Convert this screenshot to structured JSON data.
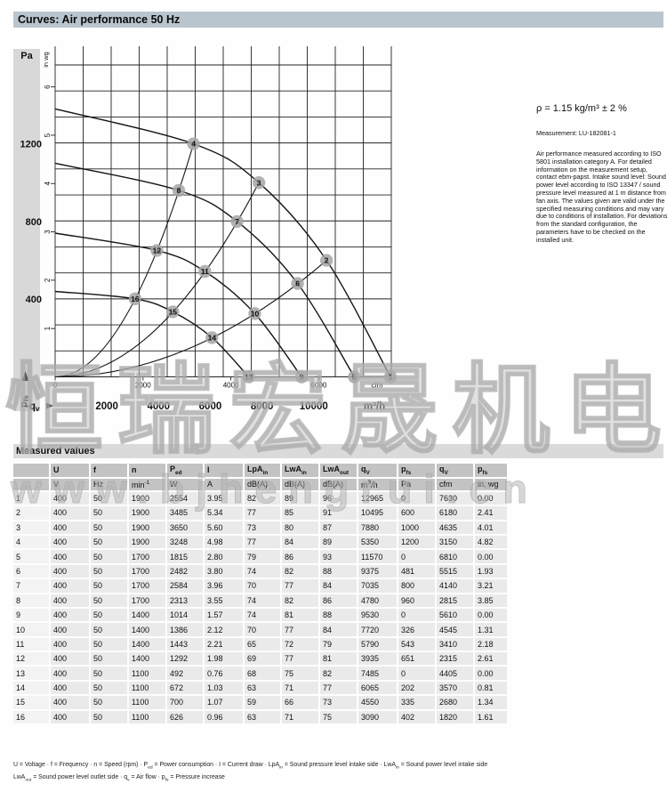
{
  "header": {
    "title": "Curves: Air performance 50 Hz"
  },
  "colors": {
    "title_bar": "#b9c5ce",
    "section_bar": "#dadada",
    "header_cell": "#c3c3c3",
    "body_cell": "#eaeaea",
    "rownum_cell": "#f3f3f3",
    "axis_band": "#d8d8d8",
    "point_marker": "#a6a6a6",
    "curve": "#141414",
    "grid": "#222222"
  },
  "side_notes": {
    "density": "ρ = 1.15 kg/m³ ± 2 %",
    "measurement": "Measurement: LU-182081-1",
    "note": "Air performance measured according to ISO 5801 installation category A. For detailed information on the measurement setup, contact ebm-papst. Intake sound level: Sound power level according to ISO 13347 / sound pressure level measured at 1 m distance from fan axis. The values given are valid under the specified measuring conditions and may vary due to conditions of installation. For deviations from the standard configuration, the parameters have to be checked on the installed unit."
  },
  "watermark": {
    "cjk": "恒瑞宏晟机电",
    "url": "www.bjhengrui.cn"
  },
  "chart_data": {
    "type": "line",
    "title": "Curves: Air performance 50 Hz",
    "x_axis": {
      "name": "q",
      "name_sub": "v",
      "outer_unit": "m³/h",
      "outer_ticks": [
        2000,
        4000,
        6000,
        8000,
        10000
      ],
      "inner_unit": "cfm",
      "inner_ticks": [
        0,
        2000,
        4000,
        6000
      ],
      "range_m3h": [
        0,
        13000
      ]
    },
    "y_axis": {
      "name": "p",
      "name_sub": "fs",
      "outer_unit": "Pa",
      "outer_ticks": [
        400,
        800,
        1200
      ],
      "inner_unit": "in wg",
      "inner_ticks": [
        1,
        2,
        3,
        4,
        5,
        6
      ],
      "range_pa": [
        0,
        1606
      ]
    },
    "grid": {
      "cols": 12,
      "rows": 12,
      "on": true
    },
    "speed_curves": [
      {
        "rpm": 1900,
        "zero_flow_pa": 1380,
        "points": [
          {
            "id": 4,
            "q_m3h": 5350,
            "p_pa": 1200
          },
          {
            "id": 3,
            "q_m3h": 7880,
            "p_pa": 1000
          },
          {
            "id": 2,
            "q_m3h": 10495,
            "p_pa": 600
          },
          {
            "id": 1,
            "q_m3h": 12965,
            "p_pa": 0
          }
        ]
      },
      {
        "rpm": 1700,
        "zero_flow_pa": 1100,
        "points": [
          {
            "id": 8,
            "q_m3h": 4780,
            "p_pa": 960
          },
          {
            "id": 7,
            "q_m3h": 7035,
            "p_pa": 800
          },
          {
            "id": 6,
            "q_m3h": 9375,
            "p_pa": 481
          },
          {
            "id": 5,
            "q_m3h": 11570,
            "p_pa": 0
          }
        ]
      },
      {
        "rpm": 1400,
        "zero_flow_pa": 740,
        "points": [
          {
            "id": 12,
            "q_m3h": 3935,
            "p_pa": 651
          },
          {
            "id": 11,
            "q_m3h": 5790,
            "p_pa": 543
          },
          {
            "id": 10,
            "q_m3h": 7720,
            "p_pa": 326
          },
          {
            "id": 9,
            "q_m3h": 9530,
            "p_pa": 0
          }
        ]
      },
      {
        "rpm": 1100,
        "zero_flow_pa": 440,
        "points": [
          {
            "id": 16,
            "q_m3h": 3090,
            "p_pa": 402
          },
          {
            "id": 15,
            "q_m3h": 4550,
            "p_pa": 335
          },
          {
            "id": 14,
            "q_m3h": 6065,
            "p_pa": 202
          },
          {
            "id": 13,
            "q_m3h": 7485,
            "p_pa": 0
          }
        ]
      }
    ],
    "system_curves": [
      {
        "through_ids": [
          16,
          12,
          8,
          4
        ],
        "end": {
          "q_m3h": 5350,
          "p_pa": 1200
        }
      },
      {
        "through_ids": [
          15,
          11,
          7,
          3
        ],
        "end": {
          "q_m3h": 7880,
          "p_pa": 1000
        }
      },
      {
        "through_ids": [
          14,
          10,
          6,
          2
        ],
        "end": {
          "q_m3h": 10495,
          "p_pa": 600
        }
      }
    ]
  },
  "table": {
    "title": "Measured values",
    "columns": [
      [],
      [
        {
          "t": "U"
        }
      ],
      [
        {
          "t": "f"
        }
      ],
      [
        {
          "t": "n"
        }
      ],
      [
        {
          "t": "P"
        },
        {
          "sub": "ed"
        }
      ],
      [
        {
          "t": "I"
        }
      ],
      [
        {
          "t": "LpA"
        },
        {
          "sub": "in"
        }
      ],
      [
        {
          "t": "LwA"
        },
        {
          "sub": "in"
        }
      ],
      [
        {
          "t": "LwA"
        },
        {
          "sub": "out"
        }
      ],
      [
        {
          "t": "q"
        },
        {
          "sub": "V"
        }
      ],
      [
        {
          "t": "p"
        },
        {
          "sub": "fs"
        }
      ],
      [
        {
          "t": "q"
        },
        {
          "sub": "V"
        }
      ],
      [
        {
          "t": "p"
        },
        {
          "sub": "fs"
        }
      ]
    ],
    "units": [
      [],
      [
        {
          "t": "V"
        }
      ],
      [
        {
          "t": "Hz"
        }
      ],
      [
        {
          "t": "min"
        },
        {
          "sup": "-1"
        }
      ],
      [
        {
          "t": "W"
        }
      ],
      [
        {
          "t": "A"
        }
      ],
      [
        {
          "t": "dB(A)"
        }
      ],
      [
        {
          "t": "dB(A)"
        }
      ],
      [
        {
          "t": "dB(A)"
        }
      ],
      [
        {
          "t": "m"
        },
        {
          "sup": "3"
        },
        {
          "t": "/h"
        }
      ],
      [
        {
          "t": "Pa"
        }
      ],
      [
        {
          "t": "cfm"
        }
      ],
      [
        {
          "t": "in. wg"
        }
      ]
    ],
    "rows": [
      [
        "1",
        "400",
        "50",
        "1900",
        "2554",
        "3.95",
        "82",
        "89",
        "96",
        "12965",
        "0",
        "7630",
        "0.00"
      ],
      [
        "2",
        "400",
        "50",
        "1900",
        "3485",
        "5.34",
        "77",
        "85",
        "91",
        "10495",
        "600",
        "6180",
        "2.41"
      ],
      [
        "3",
        "400",
        "50",
        "1900",
        "3650",
        "5.60",
        "73",
        "80",
        "87",
        "7880",
        "1000",
        "4635",
        "4.01"
      ],
      [
        "4",
        "400",
        "50",
        "1900",
        "3248",
        "4.98",
        "77",
        "84",
        "89",
        "5350",
        "1200",
        "3150",
        "4.82"
      ],
      [
        "5",
        "400",
        "50",
        "1700",
        "1815",
        "2.80",
        "79",
        "86",
        "93",
        "11570",
        "0",
        "6810",
        "0.00"
      ],
      [
        "6",
        "400",
        "50",
        "1700",
        "2482",
        "3.80",
        "74",
        "82",
        "88",
        "9375",
        "481",
        "5515",
        "1.93"
      ],
      [
        "7",
        "400",
        "50",
        "1700",
        "2584",
        "3.96",
        "70",
        "77",
        "84",
        "7035",
        "800",
        "4140",
        "3.21"
      ],
      [
        "8",
        "400",
        "50",
        "1700",
        "2313",
        "3.55",
        "74",
        "82",
        "86",
        "4780",
        "960",
        "2815",
        "3.85"
      ],
      [
        "9",
        "400",
        "50",
        "1400",
        "1014",
        "1.57",
        "74",
        "81",
        "88",
        "9530",
        "0",
        "5610",
        "0.00"
      ],
      [
        "10",
        "400",
        "50",
        "1400",
        "1386",
        "2.12",
        "70",
        "77",
        "84",
        "7720",
        "326",
        "4545",
        "1.31"
      ],
      [
        "11",
        "400",
        "50",
        "1400",
        "1443",
        "2.21",
        "65",
        "72",
        "79",
        "5790",
        "543",
        "3410",
        "2.18"
      ],
      [
        "12",
        "400",
        "50",
        "1400",
        "1292",
        "1.98",
        "69",
        "77",
        "81",
        "3935",
        "651",
        "2315",
        "2.61"
      ],
      [
        "13",
        "400",
        "50",
        "1100",
        "492",
        "0.76",
        "68",
        "75",
        "82",
        "7485",
        "0",
        "4405",
        "0.00"
      ],
      [
        "14",
        "400",
        "50",
        "1100",
        "672",
        "1.03",
        "63",
        "71",
        "77",
        "6065",
        "202",
        "3570",
        "0.81"
      ],
      [
        "15",
        "400",
        "50",
        "1100",
        "700",
        "1.07",
        "59",
        "66",
        "73",
        "4550",
        "335",
        "2680",
        "1.34"
      ],
      [
        "16",
        "400",
        "50",
        "1100",
        "626",
        "0.96",
        "63",
        "71",
        "75",
        "3090",
        "402",
        "1820",
        "1.61"
      ]
    ]
  },
  "footnotes": [
    [
      {
        "t": "U = Voltage · f = Frequency · n = Speed (rpm) · P"
      },
      {
        "sub": "ed"
      },
      {
        "t": " = Power consumption · I = Current draw · LpA"
      },
      {
        "sub": "in"
      },
      {
        "t": " = Sound pressure level intake side · LwA"
      },
      {
        "sub": "in"
      },
      {
        "t": " = Sound power level intake side"
      }
    ],
    [
      {
        "t": "LwA"
      },
      {
        "sub": "out"
      },
      {
        "t": " = Sound power level outlet side · q"
      },
      {
        "sub": "v"
      },
      {
        "t": " = Air flow · p"
      },
      {
        "sub": "fs"
      },
      {
        "t": " = Pressure increase"
      }
    ]
  ]
}
